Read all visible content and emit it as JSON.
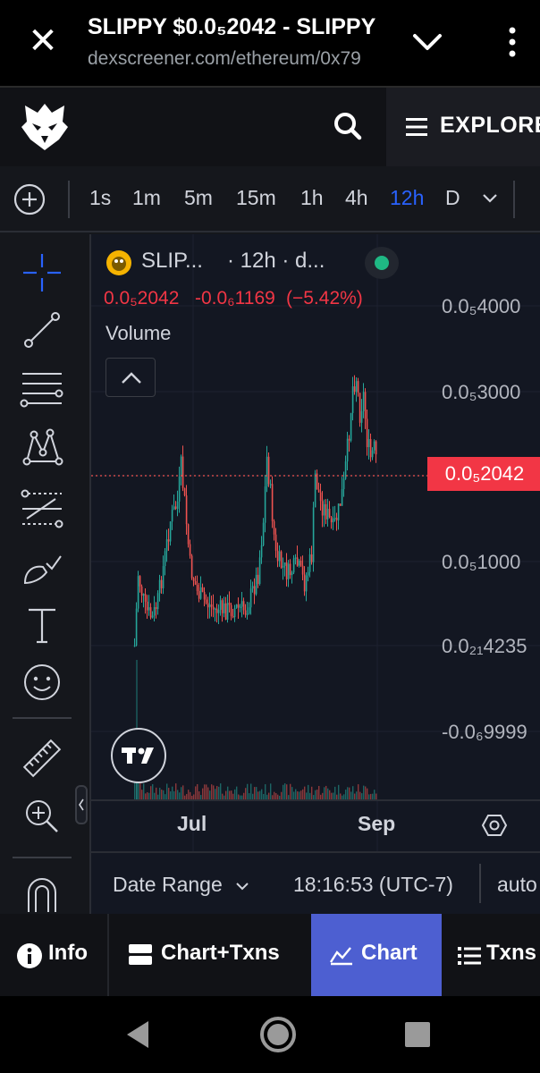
{
  "browser": {
    "title": "SLIPPY $0.0₅2042 - SLIPPY",
    "url": "dexscreener.com/ethereum/0x79"
  },
  "header": {
    "explore_label": "EXPLORE"
  },
  "toolbar": {
    "timeframes": [
      "1s",
      "1m",
      "5m",
      "15m",
      "1h",
      "4h",
      "12h",
      "D"
    ],
    "active_timeframe": "12h"
  },
  "chart": {
    "symbol": "SLIP...",
    "interval_info": "· 12h · d...",
    "price": "0.0₅2042",
    "change": "-0.0₆1169",
    "change_pct": "(−5.42%)",
    "volume_label": "Volume",
    "current_price_tag": "0.0₅2042",
    "y_ticks": [
      "0.0₅4000",
      "0.0₅3000",
      "0.0₅1000",
      "0.0₂₁4235",
      "-0.0₆9999"
    ],
    "x_ticks": [
      "Jul",
      "Sep"
    ],
    "date_range_label": "Date Range",
    "clock": "18:16:53 (UTC-7)",
    "auto_label": "auto",
    "status_color": "#1fb884",
    "up_color": "#26a69a",
    "down_color": "#ef5350"
  },
  "tabs": {
    "info": "Info",
    "chart_txns": "Chart+Txns",
    "chart": "Chart",
    "txns": "Txns",
    "active": "Chart"
  },
  "icons": {
    "close": "close-icon",
    "chevron": "chevron-down-icon",
    "more": "more-vert-icon",
    "search": "search-icon",
    "menu": "hamburger-icon"
  }
}
